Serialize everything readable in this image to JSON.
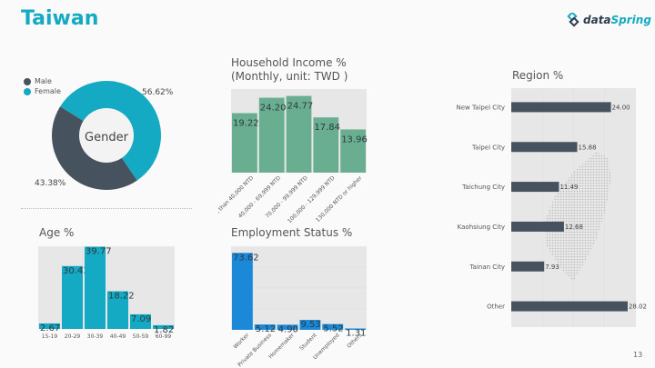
{
  "header": {
    "title": "Taiwan",
    "logo_text_1": "data",
    "logo_text_2": "Spring",
    "page_number": "13"
  },
  "colors": {
    "brand": "#14aac3",
    "male": "#47525f",
    "female": "#14aac3",
    "income_bar": "#6aae91",
    "age_bar": "#14aac3",
    "employment_bar": "#1b88d8",
    "region_bar": "#47525f",
    "plot_bg": "#e8e7e8"
  },
  "chart_data": [
    {
      "id": "gender",
      "type": "pie",
      "title": "Gender",
      "legend": [
        "Male",
        "Female"
      ],
      "legend_position": "top-left",
      "categories": [
        "Male",
        "Female"
      ],
      "values": [
        43.38,
        56.62
      ],
      "labels": [
        "43.38%",
        "56.62%"
      ]
    },
    {
      "id": "income",
      "type": "bar",
      "title": "Household Income %",
      "subtitle": "(Monthly, unit: TWD )",
      "categories": [
        "Less than 40,000 NTD",
        "40,000 - 69,999 NTD",
        "70,000 - 99,999 NTD",
        "100,000 - 129,999 NTD",
        "130,000 NTD or higher"
      ],
      "values": [
        19.22,
        24.2,
        24.77,
        17.84,
        13.96
      ],
      "labels": [
        "19.22",
        "24.20",
        "24.77",
        "17.84",
        "13.96"
      ],
      "ylim": [
        0,
        27
      ],
      "grid": false
    },
    {
      "id": "age",
      "type": "bar",
      "title": "Age %",
      "categories": [
        "15-19",
        "20-29",
        "30-39",
        "40-49",
        "50-59",
        "60-99"
      ],
      "values": [
        2.67,
        30.43,
        39.77,
        18.22,
        7.09,
        1.82
      ],
      "labels": [
        "2.67",
        "30.43",
        "39.77",
        "18.22",
        "7.09",
        "1.82"
      ],
      "ylim": [
        0,
        40
      ],
      "grid": false
    },
    {
      "id": "employment",
      "type": "bar",
      "title": "Employment Status %",
      "categories": [
        "Worker",
        "Private Business",
        "Homemaker",
        "Student",
        "Unemployed",
        "Others"
      ],
      "values": [
        73.62,
        5.12,
        4.9,
        9.53,
        5.52,
        1.31
      ],
      "labels": [
        "73.62",
        "5.12",
        "4.90",
        "9.53",
        "5.52",
        "1.31"
      ],
      "ylim": [
        0,
        80
      ],
      "grid": true
    },
    {
      "id": "region",
      "type": "bar",
      "orientation": "horizontal",
      "title": "Region %",
      "categories": [
        "New Taipei City",
        "Taipei City",
        "Taichung City",
        "Kaohsiung City",
        "Tainan City",
        "Other"
      ],
      "values": [
        24.0,
        15.88,
        11.49,
        12.68,
        7.93,
        28.02
      ],
      "labels": [
        "24.00",
        "15.88",
        "11.49",
        "12.68",
        "7.93",
        "28.02"
      ],
      "xlim": [
        0,
        30
      ],
      "grid": true
    }
  ]
}
